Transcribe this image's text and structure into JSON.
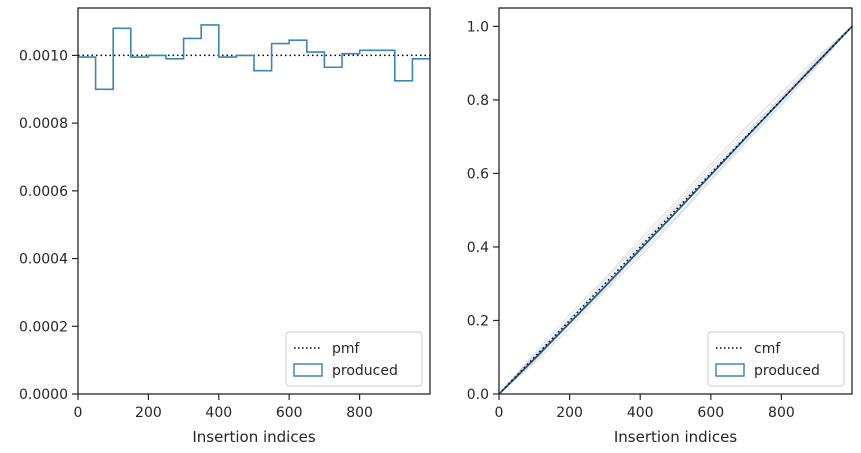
{
  "chart_data": [
    {
      "type": "histogram",
      "xlabel": "Insertion indices",
      "ylabel": "",
      "xlim": [
        0,
        1000
      ],
      "ylim": [
        0,
        0.00114
      ],
      "xticks": [
        0,
        200,
        400,
        600,
        800
      ],
      "xtick_labels": [
        "0",
        "200",
        "400",
        "600",
        "800"
      ],
      "yticks": [
        0,
        0.0002,
        0.0004,
        0.0006,
        0.0008,
        0.001
      ],
      "ytick_labels": [
        "0.0000",
        "0.0002",
        "0.0004",
        "0.0006",
        "0.0008",
        "0.0010"
      ],
      "grid": false,
      "legend_position": "lower-right",
      "reference_line": {
        "name": "pmf",
        "value": 0.001,
        "style": "dotted",
        "color": "#000000"
      },
      "series": [
        {
          "name": "produced",
          "color": "#3a87b7",
          "bin_edges": [
            0,
            50,
            100,
            150,
            200,
            250,
            300,
            350,
            400,
            450,
            500,
            550,
            600,
            650,
            700,
            750,
            800,
            850,
            900,
            950,
            1000
          ],
          "values": [
            0.000995,
            0.0009,
            0.00108,
            0.000995,
            0.001,
            0.00099,
            0.00105,
            0.00109,
            0.000995,
            0.001,
            0.000955,
            0.001035,
            0.001045,
            0.00101,
            0.000965,
            0.001005,
            0.001015,
            0.001015,
            0.000925,
            0.00099
          ]
        }
      ]
    },
    {
      "type": "line",
      "xlabel": "Insertion indices",
      "ylabel": "",
      "xlim": [
        0,
        1000
      ],
      "ylim": [
        0,
        1.05
      ],
      "xticks": [
        0,
        200,
        400,
        600,
        800
      ],
      "xtick_labels": [
        "0",
        "200",
        "400",
        "600",
        "800"
      ],
      "yticks": [
        0,
        0.2,
        0.4,
        0.6,
        0.8,
        1.0
      ],
      "ytick_labels": [
        "0.0",
        "0.2",
        "0.4",
        "0.6",
        "0.8",
        "1.0"
      ],
      "grid": false,
      "legend_position": "lower-right",
      "series": [
        {
          "name": "cmf",
          "style": "dotted",
          "color": "#000000",
          "x": [
            0,
            1000
          ],
          "y": [
            0,
            1.0
          ]
        },
        {
          "name": "produced",
          "color": "#1f5c8f",
          "x": [
            0,
            100,
            200,
            300,
            400,
            500,
            600,
            700,
            800,
            900,
            1000
          ],
          "y": [
            0,
            0.095,
            0.193,
            0.292,
            0.393,
            0.493,
            0.596,
            0.698,
            0.799,
            0.9,
            1.0
          ]
        }
      ],
      "background_series": {
        "color": "#d4d4d4",
        "x": [
          0,
          100,
          200,
          300,
          400,
          500,
          600,
          700,
          800,
          900,
          1000
        ],
        "y": [
          [
            0,
            0.11,
            0.215,
            0.315,
            0.42,
            0.52,
            0.625,
            0.725,
            0.82,
            0.915,
            1.0
          ],
          [
            0,
            0.085,
            0.18,
            0.28,
            0.375,
            0.475,
            0.58,
            0.685,
            0.785,
            0.895,
            1.0
          ],
          [
            0,
            0.1,
            0.205,
            0.3,
            0.4,
            0.505,
            0.605,
            0.705,
            0.81,
            0.905,
            1.0
          ],
          [
            0,
            0.09,
            0.19,
            0.285,
            0.385,
            0.48,
            0.585,
            0.69,
            0.79,
            0.89,
            1.0
          ],
          [
            0,
            0.105,
            0.2,
            0.31,
            0.41,
            0.51,
            0.615,
            0.715,
            0.805,
            0.91,
            1.0
          ]
        ]
      }
    }
  ]
}
